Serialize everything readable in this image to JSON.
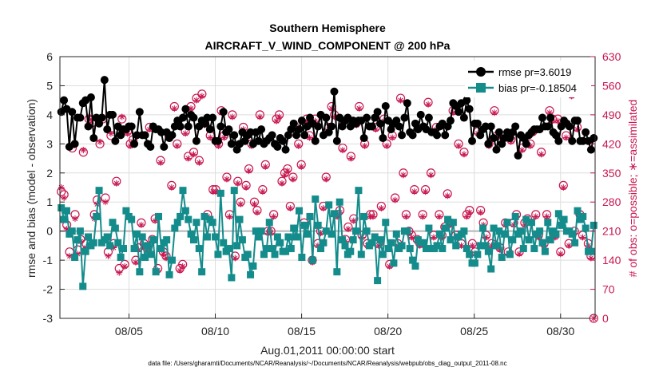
{
  "chart_data": {
    "type": "line",
    "title": "Southern Hemisphere",
    "subtitle": "AIRCRAFT_V_WIND_COMPONENT @ 200 hPa",
    "xlabel": "Aug.01,2011 00:00:00 start",
    "ylabel": "rmse and bias (model - observation)",
    "ylabel_right": "# of obs: o=possible; ∗=assimilated",
    "footnote": "data file: /Users/gharamti/Documents/NCAR/Reanalysis/~/Documents/NCAR/Reanalysis/webpub/obs_diag_output_2011-08.nc",
    "x_range_days": [
      1,
      32
    ],
    "ylim": [
      -3,
      6
    ],
    "ylim_right": [
      0,
      630
    ],
    "x_ticks": [
      {
        "day": 5,
        "label": "08/05"
      },
      {
        "day": 10,
        "label": "08/10"
      },
      {
        "day": 15,
        "label": "08/15"
      },
      {
        "day": 20,
        "label": "08/20"
      },
      {
        "day": 25,
        "label": "08/25"
      },
      {
        "day": 30,
        "label": "08/30"
      }
    ],
    "y_ticks_left": [
      -3,
      -2,
      -1,
      0,
      1,
      2,
      3,
      4,
      5,
      6
    ],
    "y_ticks_right": [
      0,
      70,
      140,
      210,
      280,
      350,
      420,
      490,
      560,
      630
    ],
    "grid": true,
    "legend_position": "top-right",
    "colors": {
      "rmse": "#000000",
      "bias": "#148c8c",
      "obs": "#c8174f",
      "zero_line": "#b4b4b4",
      "grid": "#dddddd"
    },
    "series": [
      {
        "name": "rmse pr=3.6019",
        "color": "#000000",
        "marker": "circle",
        "values": [
          4.1,
          4.5,
          4.2,
          2.9,
          4.1,
          3.0,
          3.9,
          3.9,
          4.4,
          4.5,
          3.6,
          4.6,
          3.2,
          3.9,
          3.7,
          3.9,
          5.2,
          3.5,
          4.0,
          4.0,
          3.1,
          3.6,
          3.3,
          3.5,
          3.5,
          3.6,
          3.6,
          3.0,
          3.3,
          4.1,
          3.3,
          3.3,
          3.0,
          2.9,
          3.6,
          3.5,
          3.5,
          3.4,
          2.9,
          3.4,
          3.2,
          3.3,
          3.6,
          3.8,
          3.6,
          3.9,
          4.2,
          3.6,
          4.0,
          3.9,
          3.1,
          3.6,
          3.8,
          3.7,
          3.9,
          3.5,
          3.9,
          3.1,
          3.1,
          3.6,
          4.1,
          3.4,
          3.5,
          3.0,
          3.3,
          2.8,
          3.0,
          3.4,
          3.1,
          3.3,
          3.4,
          3.0,
          3.4,
          3.1,
          3.5,
          3.0,
          3.1,
          3.2,
          3.3,
          3.0,
          2.9,
          3.2,
          3.1,
          2.8,
          3.3,
          3.5,
          3.7,
          3.3,
          3.5,
          3.8,
          3.3,
          3.6,
          3.9,
          3.7,
          3.1,
          3.6,
          4.0,
          3.3,
          3.9,
          3.4,
          3.6,
          4.8,
          3.1,
          3.9,
          3.6,
          3.8,
          3.9,
          3.6,
          3.8,
          3.7,
          3.8,
          3.8,
          3.2,
          3.9,
          3.6,
          3.6,
          3.9,
          4.1,
          3.7,
          3.2,
          4.3,
          3.8,
          3.5,
          3.7,
          3.8,
          3.6,
          3.3,
          3.9,
          4.4,
          3.4,
          3.3,
          3.7,
          3.5,
          4.0,
          3.6,
          3.5,
          3.9,
          3.4,
          3.4,
          3.3,
          3.6,
          3.7,
          3.3,
          3.6,
          3.8,
          4.4,
          4.3,
          4.1,
          4.4,
          3.9,
          4.5,
          4.2,
          3.1,
          3.7,
          3.7,
          3.3,
          3.5,
          3.6,
          3.0,
          3.6,
          3.2,
          2.8,
          3.4,
          3.0,
          3.2,
          3.4,
          3.2,
          3.4,
          3.6,
          2.6,
          3.3,
          3.2,
          3.0,
          3.3,
          3.4,
          3.5,
          3.5,
          3.5,
          3.9,
          3.6,
          3.6,
          3.9,
          3.4,
          3.3,
          3.1,
          3.6,
          3.8,
          3.7,
          3.6,
          3.1,
          3.8,
          3.8,
          3.1,
          3.1,
          3.4,
          3.1,
          2.8,
          3.2
        ]
      },
      {
        "name": "bias pr=-0.18504",
        "color": "#148c8c",
        "marker": "square",
        "values": [
          0.8,
          0.4,
          0.7,
          -0.1,
          0.0,
          -0.9,
          -0.3,
          0.0,
          -1.9,
          -0.7,
          -0.2,
          -0.5,
          -0.4,
          0.5,
          1.4,
          -0.4,
          -0.3,
          -0.2,
          -0.5,
          0.3,
          0.1,
          -0.4,
          -0.9,
          -0.6,
          0.7,
          0.5,
          0.4,
          -0.6,
          -0.1,
          -1.4,
          -0.2,
          -0.9,
          -0.5,
          -0.8,
          -0.3,
          -1.4,
          0.5,
          -0.6,
          -0.4,
          -0.3,
          -1.5,
          -1.0,
          0.1,
          0.3,
          0.5,
          1.4,
          0.7,
          0.4,
          -0.1,
          -0.3,
          0.3,
          -0.6,
          -1.4,
          0.5,
          -0.2,
          0.4,
          0.3,
          -0.2,
          -0.8,
          1.3,
          -0.4,
          -0.7,
          -0.6,
          -1.6,
          1.4,
          -0.5,
          0.4,
          -0.3,
          -0.9,
          -0.8,
          -1.5,
          -1.2,
          0.0,
          -0.2,
          0.0,
          -0.8,
          -0.6,
          0.3,
          -0.6,
          -0.8,
          -0.2,
          -0.4,
          -0.7,
          -0.7,
          -0.2,
          -0.6,
          0.1,
          -0.2,
          0.7,
          -0.9,
          0.2,
          -0.1,
          0.5,
          -1.0,
          1.1,
          0.2,
          -0.6,
          -0.4,
          0.0,
          0.9,
          -0.1,
          0.6,
          -1.4,
          1.0,
          -0.3,
          -0.5,
          -0.8,
          -0.7,
          -0.3,
          0.0,
          1.4,
          -0.8,
          0.5,
          0.0,
          -0.5,
          -0.4,
          -0.2,
          -1.7,
          -0.3,
          -0.8,
          0.3,
          -0.6,
          -0.4,
          -1.1,
          -0.1,
          -0.6,
          -0.5,
          0.0,
          0.0,
          -0.6,
          -1.0,
          -1.2,
          -0.3,
          -0.4,
          -0.4,
          -0.6,
          0.1,
          -0.6,
          -0.6,
          -0.5,
          -0.1,
          -0.6,
          0.1,
          0.4,
          -0.3,
          0.3,
          -0.5,
          -0.2,
          -0.1,
          0.0,
          -0.6,
          -0.8,
          -1.1,
          -1.1,
          -0.8,
          -0.5,
          0.1,
          -0.5,
          -0.7,
          -1.3,
          0.1,
          -0.5,
          0.0,
          -0.9,
          -0.1,
          0.3,
          -0.8,
          -0.3,
          0.5,
          -0.1,
          0.0,
          -0.6,
          0.4,
          -0.3,
          0.3,
          -0.6,
          -0.1,
          0.0,
          -0.4,
          -0.7,
          0.3,
          -0.3,
          0.0,
          -0.1,
          0.6,
          0.2,
          0.4,
          0.0,
          0.0,
          -0.1,
          -0.4,
          0.7,
          0.4,
          0.5,
          0.1,
          -0.7,
          -0.7,
          0.2
        ]
      }
    ],
    "obs_possible": [
      305,
      298,
      225,
      160,
      410,
      250,
      165,
      190,
      400,
      180,
      480,
      470,
      250,
      285,
      420,
      480,
      290,
      160,
      440,
      180,
      330,
      120,
      480,
      130,
      450,
      420,
      430,
      140,
      170,
      230,
      180,
      170,
      460,
      190,
      240,
      120,
      380,
      160,
      150,
      440,
      320,
      510,
      420,
      120,
      130,
      450,
      390,
      510,
      400,
      530,
      380,
      540,
      470,
      250,
      440,
      310,
      310,
      420,
      500,
      440,
      340,
      250,
      490,
      150,
      330,
      280,
      460,
      320,
      360,
      420,
      280,
      260,
      490,
      310,
      370,
      210,
      210,
      250,
      480,
      490,
      330,
      350,
      360,
      270,
      340,
      460,
      420,
      370,
      230,
      480,
      440,
      140,
      480,
      180,
      210,
      270,
      340,
      460,
      510,
      490,
      250,
      260,
      410,
      190,
      220,
      390,
      240,
      470,
      510,
      200,
      420,
      180,
      250,
      250,
      460,
      180,
      270,
      480,
      420,
      130,
      440,
      290,
      180,
      530,
      350,
      250,
      210,
      200,
      310,
      190,
      180,
      250,
      310,
      520,
      350,
      200,
      460,
      250,
      200,
      220,
      300,
      230,
      500,
      200,
      420,
      180,
      400,
      250,
      260,
      180,
      160,
      450,
      260,
      230,
      200,
      420,
      180,
      500,
      440,
      170,
      440,
      230,
      160,
      430,
      230,
      250,
      160,
      410,
      230,
      240,
      420,
      450,
      250,
      200,
      400,
      180,
      250,
      500,
      480,
      200,
      480,
      160,
      320,
      440,
      180,
      540,
      210,
      460,
      250,
      200,
      560,
      180,
      150,
      0
    ],
    "obs_assimilated": [
      315,
      290,
      215,
      150,
      415,
      240,
      155,
      185,
      405,
      170,
      485,
      475,
      240,
      275,
      425,
      485,
      280,
      150,
      445,
      170,
      325,
      110,
      485,
      125,
      445,
      415,
      425,
      135,
      165,
      225,
      175,
      165,
      455,
      185,
      235,
      115,
      375,
      155,
      145,
      435,
      315,
      505,
      415,
      115,
      125,
      445,
      385,
      505,
      395,
      525,
      375,
      535,
      465,
      245,
      435,
      305,
      305,
      415,
      495,
      435,
      335,
      245,
      485,
      145,
      325,
      275,
      455,
      315,
      355,
      415,
      275,
      255,
      485,
      305,
      365,
      205,
      205,
      245,
      475,
      485,
      325,
      345,
      355,
      265,
      335,
      455,
      415,
      365,
      225,
      475,
      435,
      135,
      475,
      175,
      205,
      265,
      335,
      455,
      505,
      485,
      245,
      255,
      405,
      185,
      215,
      385,
      235,
      465,
      505,
      195,
      415,
      175,
      245,
      245,
      455,
      175,
      265,
      475,
      415,
      125,
      435,
      285,
      175,
      525,
      345,
      245,
      205,
      195,
      305,
      185,
      175,
      245,
      305,
      515,
      345,
      195,
      455,
      245,
      195,
      215,
      295,
      225,
      495,
      195,
      415,
      175,
      395,
      245,
      255,
      175,
      155,
      445,
      255,
      225,
      195,
      415,
      175,
      495,
      435,
      165,
      435,
      225,
      155,
      425,
      225,
      245,
      155,
      405,
      225,
      235,
      415,
      445,
      245,
      195,
      395,
      175,
      245,
      495,
      475,
      195,
      475,
      155,
      315,
      435,
      175,
      535,
      205,
      455,
      245,
      195,
      555,
      175,
      145,
      0
    ]
  }
}
